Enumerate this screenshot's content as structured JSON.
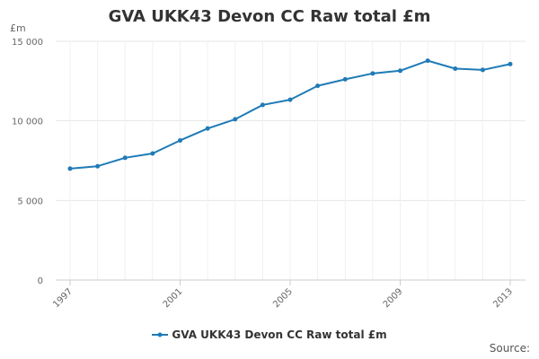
{
  "chart_data": {
    "type": "line",
    "title": "GVA UKK43 Devon CC Raw total £m",
    "y_unit_label": "£m",
    "xlabel": "",
    "ylabel": "",
    "x": [
      1997,
      1998,
      1999,
      2000,
      2001,
      2002,
      2003,
      2004,
      2005,
      2006,
      2007,
      2008,
      2009,
      2010,
      2011,
      2012,
      2013
    ],
    "x_tick_labels": [
      "1997",
      "2001",
      "2005",
      "2009",
      "2013"
    ],
    "x_ticks": [
      1997,
      2001,
      2005,
      2009,
      2013
    ],
    "y_tick_labels": [
      "0",
      "5 000",
      "10 000",
      "15 000"
    ],
    "y_ticks": [
      0,
      5000,
      10000,
      15000
    ],
    "ylim": [
      0,
      15000
    ],
    "xlim": [
      1997,
      2013
    ],
    "grid": true,
    "legend_position": "bottom",
    "series": [
      {
        "name": "GVA UKK43 Devon CC Raw total £m",
        "color": "#1f7bb6",
        "values": [
          7000,
          7150,
          7680,
          7950,
          8770,
          9520,
          10100,
          11000,
          11330,
          12200,
          12610,
          12980,
          13150,
          13780,
          13280,
          13200,
          13570
        ]
      }
    ],
    "credit": "Source:"
  }
}
